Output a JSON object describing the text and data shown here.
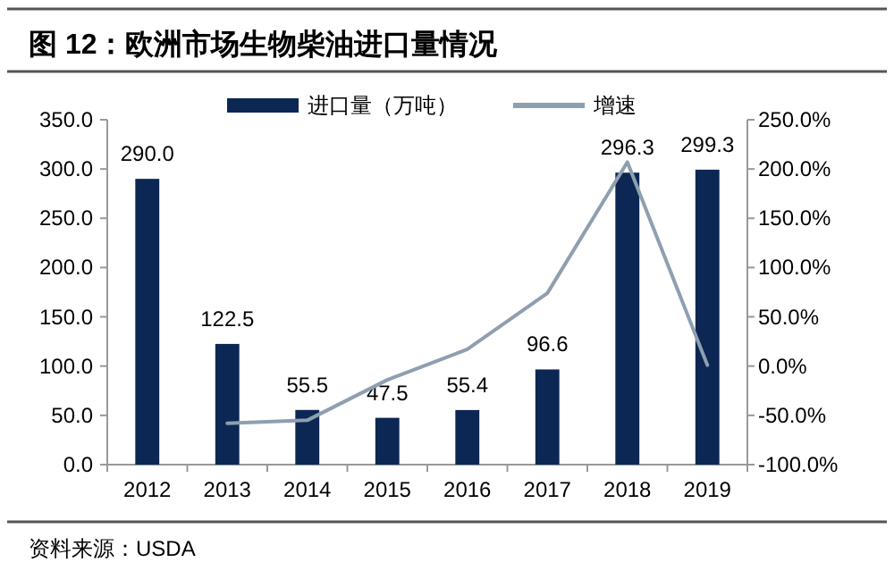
{
  "chart_data": {
    "type": "bar",
    "title": "图 12：欧洲市场生物柴油进口量情况",
    "categories": [
      "2012",
      "2013",
      "2014",
      "2015",
      "2016",
      "2017",
      "2018",
      "2019"
    ],
    "series": [
      {
        "name": "进口量（万吨）",
        "color": "#0c2753",
        "values": [
          290.0,
          122.5,
          55.5,
          47.5,
          55.4,
          96.6,
          296.3,
          299.3
        ],
        "value_labels": [
          "290.0",
          "122.5",
          "55.5",
          "47.5",
          "55.4",
          "96.6",
          "296.3",
          "299.3"
        ]
      },
      {
        "name": "增速",
        "type": "line",
        "axis": "y2",
        "color": "#8e9fb0",
        "values": [
          null,
          -58,
          -55,
          -14,
          17,
          74,
          207,
          1
        ]
      }
    ],
    "ylim": [
      0,
      350
    ],
    "yticks": [
      {
        "value": 0,
        "label": "0.0"
      },
      {
        "value": 50,
        "label": "50.0"
      },
      {
        "value": 100,
        "label": "100.0"
      },
      {
        "value": 150,
        "label": "150.0"
      },
      {
        "value": 200,
        "label": "200.0"
      },
      {
        "value": 250,
        "label": "250.0"
      },
      {
        "value": 300,
        "label": "300.0"
      },
      {
        "value": 350,
        "label": "350.0"
      }
    ],
    "y2lim": [
      -100,
      250
    ],
    "y2ticks": [
      {
        "value": -100,
        "label": "-100.0%"
      },
      {
        "value": -50,
        "label": "-50.0%"
      },
      {
        "value": 0,
        "label": "0.0%"
      },
      {
        "value": 50,
        "label": "50.0%"
      },
      {
        "value": 100,
        "label": "100.0%"
      },
      {
        "value": 150,
        "label": "150.0%"
      },
      {
        "value": 200,
        "label": "200.0%"
      },
      {
        "value": 250,
        "label": "250.0%"
      }
    ],
    "legend": "top",
    "annotations": [
      "资料来源：USDA"
    ]
  }
}
